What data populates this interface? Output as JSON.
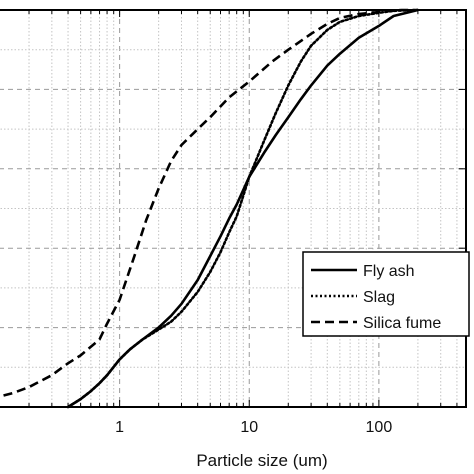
{
  "chart_data": {
    "type": "line",
    "title": "",
    "xlabel": "Particle size (um)",
    "ylabel": "",
    "x_scale": "log",
    "xlim": [
      0.1,
      470
    ],
    "ylim": [
      0,
      100
    ],
    "x_ticks": [
      {
        "value": 1,
        "label": "1"
      },
      {
        "value": 10,
        "label": "10"
      },
      {
        "value": 100,
        "label": "100"
      }
    ],
    "grid": true,
    "legend_position": "lower-right",
    "series": [
      {
        "name": "Fly ash",
        "style": "solid",
        "color": "#000000",
        "x": [
          0.4,
          0.5,
          0.6,
          0.7,
          0.8,
          1.0,
          1.2,
          1.5,
          2.0,
          2.5,
          3.0,
          4.0,
          5.0,
          6.0,
          7.0,
          8.0,
          10,
          13,
          16,
          20,
          25,
          30,
          40,
          50,
          70,
          100,
          130,
          200
        ],
        "y": [
          0,
          2,
          4,
          6,
          8,
          12,
          14.5,
          17,
          20,
          23,
          26,
          32,
          38,
          43,
          47.5,
          51,
          58,
          64,
          68.5,
          73,
          77.5,
          81,
          86,
          89,
          93,
          96,
          98.5,
          100
        ]
      },
      {
        "name": "Slag",
        "style": "dotted",
        "color": "#000000",
        "x": [
          0.4,
          0.5,
          0.6,
          0.7,
          0.8,
          1.0,
          1.2,
          1.5,
          2.0,
          2.5,
          3.0,
          4.0,
          5.0,
          6.0,
          7.0,
          8.0,
          10,
          13,
          16,
          20,
          25,
          30,
          40,
          50,
          70,
          100,
          130,
          200
        ],
        "y": [
          0,
          2,
          4,
          6,
          8,
          12,
          14.5,
          17,
          19.5,
          21.5,
          24,
          29,
          34,
          39,
          44,
          48,
          58,
          67,
          74,
          81,
          87,
          91,
          95,
          97,
          98.5,
          99.3,
          99.8,
          100
        ]
      },
      {
        "name": "Silica fume",
        "style": "dashed",
        "color": "#000000",
        "x": [
          0.1,
          0.15,
          0.2,
          0.3,
          0.4,
          0.5,
          0.7,
          0.8,
          1.0,
          1.3,
          1.6,
          2.0,
          2.5,
          3.0,
          4.0,
          5.0,
          7.0,
          10,
          15,
          20,
          30,
          40,
          50,
          70,
          100,
          150,
          200
        ],
        "y": [
          2,
          3.5,
          5,
          8,
          11,
          13,
          17,
          21,
          27,
          38,
          47,
          55,
          62,
          66,
          70,
          73,
          78,
          82,
          87,
          90,
          94,
          96.5,
          98,
          99,
          99.5,
          100,
          100
        ]
      }
    ]
  }
}
